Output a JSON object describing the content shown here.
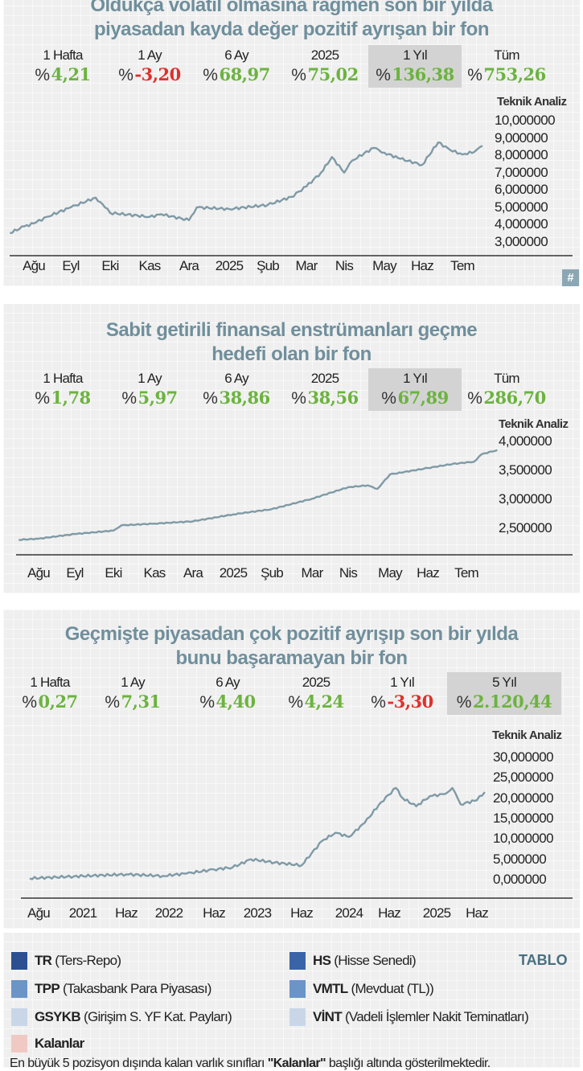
{
  "panels": [
    {
      "title_lines": [
        "Oldukça volatil olmasına rağmen son bir yılda",
        "piyasadan kayda değer pozitif ayrışan bir fon"
      ],
      "stats": [
        {
          "label": "1 Hafta",
          "value": "4,21",
          "sign": "positive"
        },
        {
          "label": "1 Ay",
          "value": "-3,20",
          "sign": "negative"
        },
        {
          "label": "6 Ay",
          "value": "68,97",
          "sign": "positive"
        },
        {
          "label": "2025",
          "value": "75,02",
          "sign": "positive"
        },
        {
          "label": "1 Yıl",
          "value": "136,38",
          "sign": "positive",
          "highlighted": true
        },
        {
          "label": "Tüm",
          "value": "753,26",
          "sign": "positive"
        }
      ],
      "badge": "#"
    },
    {
      "title_lines": [
        "Sabit getirili finansal enstrümanları geçme",
        "hedefi olan bir fon"
      ],
      "stats": [
        {
          "label": "1 Hafta",
          "value": "1,78",
          "sign": "positive"
        },
        {
          "label": "1 Ay",
          "value": "5,97",
          "sign": "positive"
        },
        {
          "label": "6 Ay",
          "value": "38,86",
          "sign": "positive"
        },
        {
          "label": "2025",
          "value": "38,56",
          "sign": "positive"
        },
        {
          "label": "1 Yıl",
          "value": "67,89",
          "sign": "positive",
          "highlighted": true
        },
        {
          "label": "Tüm",
          "value": "286,70",
          "sign": "positive"
        }
      ]
    },
    {
      "title_lines": [
        "Geçmişte piyasadan çok pozitif ayrışıp son bir yılda",
        "bunu başaramayan bir fon"
      ],
      "stats": [
        {
          "label": "1 Hafta",
          "value": "0,27",
          "sign": "positive"
        },
        {
          "label": "1 Ay",
          "value": "7,31",
          "sign": "positive"
        },
        {
          "label": "6 Ay",
          "value": "4,40",
          "sign": "positive"
        },
        {
          "label": "2025",
          "value": "4,24",
          "sign": "positive"
        },
        {
          "label": "1 Yıl",
          "value": "-3,30",
          "sign": "negative"
        },
        {
          "label": "5 Yıl",
          "value": "2.120,44",
          "sign": "positive",
          "highlighted": true
        }
      ]
    }
  ],
  "percent_sign": "%",
  "colors": {
    "title": "#6f8f9c",
    "positive": "#6cb33f",
    "negative": "#e0302b",
    "line": "#7f9aa6",
    "highlight": "#d3d3d3"
  },
  "chart_data": [
    {
      "type": "line",
      "axis_title": "Teknik Analiz",
      "grid": true,
      "ylim": [
        3,
        10
      ],
      "y_ticks": [
        "10,000000",
        "9,000000",
        "8,000000",
        "7,000000",
        "6,000000",
        "5,000000",
        "4,000000",
        "3,000000"
      ],
      "y_tick_values": [
        10,
        9,
        8,
        7,
        6,
        5,
        4,
        3
      ],
      "x_ticks": [
        {
          "label": "Ağu",
          "date": "2024-08-01"
        },
        {
          "label": "Eyl",
          "date": "2024-09-01"
        },
        {
          "label": "Eki",
          "date": "2024-10-01"
        },
        {
          "label": "Kas",
          "date": "2024-11-01"
        },
        {
          "label": "Ara",
          "date": "2024-12-01"
        },
        {
          "label": "2025",
          "date": "2025-01-01"
        },
        {
          "label": "Şub",
          "date": "2025-02-01"
        },
        {
          "label": "Mar",
          "date": "2025-03-01"
        },
        {
          "label": "Nis",
          "date": "2025-04-01"
        },
        {
          "label": "May",
          "date": "2025-05-01"
        },
        {
          "label": "Haz",
          "date": "2025-06-01"
        },
        {
          "label": "Tem",
          "date": "2025-07-01"
        }
      ],
      "series": [
        {
          "points": [
            [
              "2024-07-12",
              3.52
            ],
            [
              "2024-07-24",
              3.9
            ],
            [
              "2024-08-01",
              4.07
            ],
            [
              "2024-08-12",
              4.45
            ],
            [
              "2024-09-01",
              5.0
            ],
            [
              "2024-09-20",
              5.56
            ],
            [
              "2024-09-27",
              5.0
            ],
            [
              "2024-10-01",
              4.68
            ],
            [
              "2024-11-01",
              4.45
            ],
            [
              "2024-11-10",
              4.6
            ],
            [
              "2024-12-01",
              4.26
            ],
            [
              "2024-12-07",
              5.0
            ],
            [
              "2025-01-01",
              4.9
            ],
            [
              "2025-02-01",
              5.14
            ],
            [
              "2025-02-18",
              5.6
            ],
            [
              "2025-03-01",
              6.2
            ],
            [
              "2025-03-13",
              7.0
            ],
            [
              "2025-03-22",
              7.9
            ],
            [
              "2025-04-01",
              7.0
            ],
            [
              "2025-04-07",
              7.7
            ],
            [
              "2025-04-23",
              8.43
            ],
            [
              "2025-05-01",
              8.15
            ],
            [
              "2025-05-14",
              7.8
            ],
            [
              "2025-06-01",
              7.45
            ],
            [
              "2025-06-13",
              8.75
            ],
            [
              "2025-06-22",
              8.3
            ],
            [
              "2025-07-01",
              8.05
            ],
            [
              "2025-07-10",
              8.2
            ],
            [
              "2025-07-16",
              8.55
            ]
          ]
        }
      ]
    },
    {
      "type": "line",
      "axis_title": "Teknik Analiz",
      "grid": true,
      "ylim": [
        2.3,
        4.0
      ],
      "y_ticks": [
        "4,000000",
        "3,500000",
        "3,000000",
        "2,500000"
      ],
      "y_tick_values": [
        4.0,
        3.5,
        3.0,
        2.5
      ],
      "x_ticks": [
        {
          "label": "Ağu",
          "date": "2024-08-01"
        },
        {
          "label": "Eyl",
          "date": "2024-09-01"
        },
        {
          "label": "Eki",
          "date": "2024-10-01"
        },
        {
          "label": "Kas",
          "date": "2024-11-01"
        },
        {
          "label": "Ara",
          "date": "2024-12-01"
        },
        {
          "label": "2025",
          "date": "2025-01-01"
        },
        {
          "label": "Şub",
          "date": "2025-02-01"
        },
        {
          "label": "Mar",
          "date": "2025-03-01"
        },
        {
          "label": "Nis",
          "date": "2025-04-01"
        },
        {
          "label": "May",
          "date": "2025-05-01"
        },
        {
          "label": "Haz",
          "date": "2025-06-01"
        },
        {
          "label": "Tem",
          "date": "2025-07-01"
        }
      ],
      "series": [
        {
          "points": [
            [
              "2024-07-15",
              2.3
            ],
            [
              "2024-08-01",
              2.32
            ],
            [
              "2024-09-01",
              2.4
            ],
            [
              "2024-10-01",
              2.46
            ],
            [
              "2024-10-07",
              2.55
            ],
            [
              "2024-11-01",
              2.58
            ],
            [
              "2024-12-01",
              2.62
            ],
            [
              "2025-01-01",
              2.74
            ],
            [
              "2025-02-01",
              2.83
            ],
            [
              "2025-03-01",
              3.01
            ],
            [
              "2025-04-01",
              3.21
            ],
            [
              "2025-04-15",
              3.24
            ],
            [
              "2025-04-22",
              3.18
            ],
            [
              "2025-05-01",
              3.43
            ],
            [
              "2025-06-01",
              3.54
            ],
            [
              "2025-06-20",
              3.61
            ],
            [
              "2025-07-07",
              3.65
            ],
            [
              "2025-07-13",
              3.78
            ],
            [
              "2025-07-25",
              3.85
            ]
          ]
        }
      ]
    },
    {
      "type": "line",
      "axis_title": "Teknik Analiz",
      "grid": true,
      "ylim": [
        0,
        30
      ],
      "y_ticks": [
        "30,000000",
        "25,000000",
        "20,000000",
        "15,000000",
        "10,000000",
        "5,000000",
        "0,000000"
      ],
      "y_tick_values": [
        30,
        25,
        20,
        15,
        10,
        5,
        0
      ],
      "x_ticks": [
        {
          "label": "Ağu",
          "date": "2020-08-01"
        },
        {
          "label": "2021",
          "date": "2021-01-01"
        },
        {
          "label": "Haz",
          "date": "2021-06-01"
        },
        {
          "label": "2022",
          "date": "2022-01-01"
        },
        {
          "label": "Haz",
          "date": "2022-06-01"
        },
        {
          "label": "2023",
          "date": "2023-01-01"
        },
        {
          "label": "Haz",
          "date": "2023-06-01"
        },
        {
          "label": "2024",
          "date": "2024-01-01"
        },
        {
          "label": "Haz",
          "date": "2024-06-01"
        },
        {
          "label": "2025",
          "date": "2025-01-01"
        },
        {
          "label": "Haz",
          "date": "2025-06-01"
        }
      ],
      "series": [
        {
          "points": [
            [
              "2020-07-01",
              0.3
            ],
            [
              "2020-12-01",
              0.8
            ],
            [
              "2021-06-01",
              1.3
            ],
            [
              "2021-12-01",
              0.9
            ],
            [
              "2022-03-01",
              1.5
            ],
            [
              "2022-06-01",
              2.5
            ],
            [
              "2022-09-01",
              3.0
            ],
            [
              "2022-12-01",
              5.0
            ],
            [
              "2023-03-01",
              4.2
            ],
            [
              "2023-06-01",
              3.5
            ],
            [
              "2023-09-01",
              9.5
            ],
            [
              "2023-11-01",
              11.5
            ],
            [
              "2024-01-01",
              10.5
            ],
            [
              "2024-03-01",
              14.0
            ],
            [
              "2024-05-01",
              19.0
            ],
            [
              "2024-07-01",
              22.5
            ],
            [
              "2024-08-01",
              20.0
            ],
            [
              "2024-10-01",
              18.0
            ],
            [
              "2024-12-01",
              20.5
            ],
            [
              "2025-02-01",
              21.0
            ],
            [
              "2025-03-01",
              22.5
            ],
            [
              "2025-04-01",
              18.5
            ],
            [
              "2025-06-01",
              19.5
            ],
            [
              "2025-07-01",
              21.5
            ]
          ]
        }
      ]
    }
  ],
  "legend": {
    "title": "TABLO",
    "items": [
      {
        "code": "TR",
        "desc": "(Ters-Repo)",
        "color": "#2b4f91"
      },
      {
        "code": "HS",
        "desc": "(Hisse Senedi)",
        "color": "#3a64a8"
      },
      {
        "code": "TPP",
        "desc": "(Takasbank Para Piyasası)",
        "color": "#6a95c6"
      },
      {
        "code": "VMTL",
        "desc": "(Mevduat (TL))",
        "color": "#6a95c6"
      },
      {
        "code": "GSYKB",
        "desc": "(Girişim S. YF Kat. Payları)",
        "color": "#c9d6e8"
      },
      {
        "code": "VİNT",
        "desc": "(Vadeli İşlemler Nakit Teminatları)",
        "color": "#c9d6e8"
      },
      {
        "code": "Kalanlar",
        "desc": "",
        "color": "#f0c9c4"
      }
    ],
    "footnote_before": "En büyük 5 pozisyon dışında kalan varlık sınıfları ",
    "footnote_bold": "\"Kalanlar\"",
    "footnote_after": " başlığı altında gösterilmektedir."
  }
}
